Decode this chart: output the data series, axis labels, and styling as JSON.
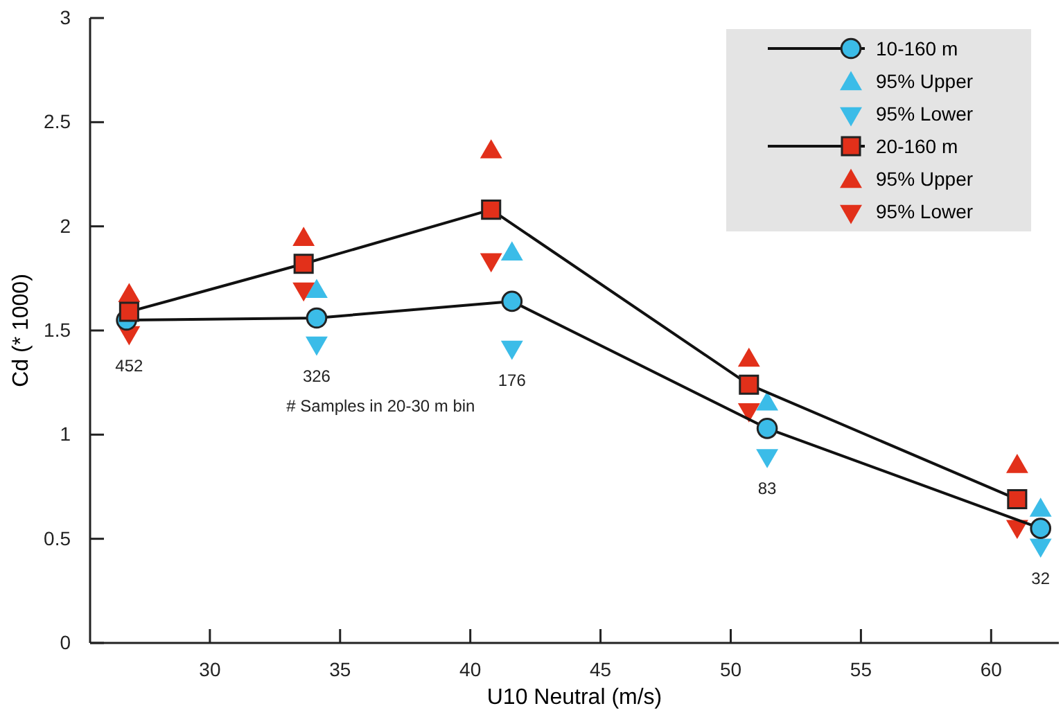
{
  "chart_data": {
    "type": "line",
    "xlabel": "U10 Neutral (m/s)",
    "ylabel": "Cd (* 1000)",
    "xlim": [
      25.4,
      62.6
    ],
    "xticks": [
      30,
      35,
      40,
      45,
      50,
      55,
      60
    ],
    "ylim": [
      0,
      3
    ],
    "yticks": [
      0,
      0.5,
      1,
      1.5,
      2,
      2.5,
      3
    ],
    "legend": "top right",
    "grid": false,
    "series": [
      {
        "name": "10-160 m",
        "marker": "circle",
        "color": "#3bbce8",
        "x": [
          26.8,
          34.1,
          41.6,
          51.4,
          61.9
        ],
        "values": [
          1.55,
          1.56,
          1.64,
          1.03,
          0.55
        ]
      },
      {
        "name": "95% Upper",
        "type": "scatter",
        "marker": "triangle",
        "color": "#3bbce8",
        "x": [
          34.1,
          41.6,
          51.4,
          61.9
        ],
        "values": [
          1.7,
          1.88,
          1.16,
          0.65
        ]
      },
      {
        "name": "95% Lower",
        "type": "scatter",
        "marker": "triangle-down",
        "color": "#3bbce8",
        "x": [
          34.1,
          41.6,
          51.4,
          61.9
        ],
        "values": [
          1.44,
          1.42,
          0.9,
          0.47
        ]
      },
      {
        "name": "20-160 m",
        "marker": "square",
        "color": "#e2301a",
        "x": [
          26.9,
          33.6,
          40.8,
          50.7,
          61.0
        ],
        "values": [
          1.59,
          1.82,
          2.08,
          1.24,
          0.69
        ]
      },
      {
        "name": "95% Upper",
        "type": "scatter",
        "marker": "triangle",
        "color": "#e2301a",
        "x": [
          26.9,
          33.6,
          40.8,
          50.7,
          61.0
        ],
        "values": [
          1.68,
          1.95,
          2.37,
          1.37,
          0.86
        ]
      },
      {
        "name": "95% Lower",
        "type": "scatter",
        "marker": "triangle-down",
        "color": "#e2301a",
        "x": [
          26.9,
          33.6,
          40.8,
          50.7,
          61.0
        ],
        "values": [
          1.49,
          1.7,
          1.84,
          1.12,
          0.56
        ]
      }
    ],
    "annotations": [
      {
        "text": "452",
        "x": 26.9,
        "y": 1.49
      },
      {
        "text": "326",
        "x": 34.1,
        "y": 1.44
      },
      {
        "text": "176",
        "x": 41.6,
        "y": 1.42
      },
      {
        "text": "83",
        "x": 51.4,
        "y": 0.9
      },
      {
        "text": "32",
        "x": 61.9,
        "y": 0.47
      },
      "# Samples in 20-30 m bin"
    ]
  }
}
